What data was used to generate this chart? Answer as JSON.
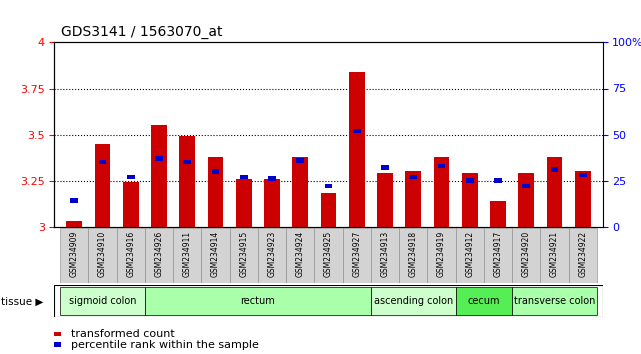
{
  "title": "GDS3141 / 1563070_at",
  "samples": [
    "GSM234909",
    "GSM234910",
    "GSM234916",
    "GSM234926",
    "GSM234911",
    "GSM234914",
    "GSM234915",
    "GSM234923",
    "GSM234924",
    "GSM234925",
    "GSM234927",
    "GSM234913",
    "GSM234918",
    "GSM234919",
    "GSM234912",
    "GSM234917",
    "GSM234920",
    "GSM234921",
    "GSM234922"
  ],
  "red_values": [
    3.03,
    3.45,
    3.24,
    3.55,
    3.49,
    3.38,
    3.26,
    3.26,
    3.38,
    3.18,
    3.84,
    3.29,
    3.3,
    3.38,
    3.29,
    3.14,
    3.29,
    3.38,
    3.3
  ],
  "blue_values": [
    3.14,
    3.35,
    3.27,
    3.37,
    3.35,
    3.3,
    3.27,
    3.26,
    3.36,
    3.22,
    3.52,
    3.32,
    3.27,
    3.33,
    3.25,
    3.25,
    3.22,
    3.31,
    3.28
  ],
  "ylim_left": [
    3.0,
    4.0
  ],
  "ylim_right": [
    0,
    100
  ],
  "yticks_left": [
    3.0,
    3.25,
    3.5,
    3.75,
    4.0
  ],
  "yticks_right": [
    0,
    25,
    50,
    75,
    100
  ],
  "tissue_groups": [
    {
      "label": "sigmoid colon",
      "start": 0,
      "end": 3,
      "color": "#ccffcc"
    },
    {
      "label": "rectum",
      "start": 3,
      "end": 11,
      "color": "#aaffaa"
    },
    {
      "label": "ascending colon",
      "start": 11,
      "end": 14,
      "color": "#ccffcc"
    },
    {
      "label": "cecum",
      "start": 14,
      "end": 16,
      "color": "#55ee55"
    },
    {
      "label": "transverse colon",
      "start": 16,
      "end": 19,
      "color": "#aaffaa"
    }
  ],
  "bar_color": "#cc0000",
  "blue_color": "#0000cc",
  "bar_width": 0.55,
  "dotted_line_color": "#000000",
  "legend_items": [
    "transformed count",
    "percentile rank within the sample"
  ]
}
